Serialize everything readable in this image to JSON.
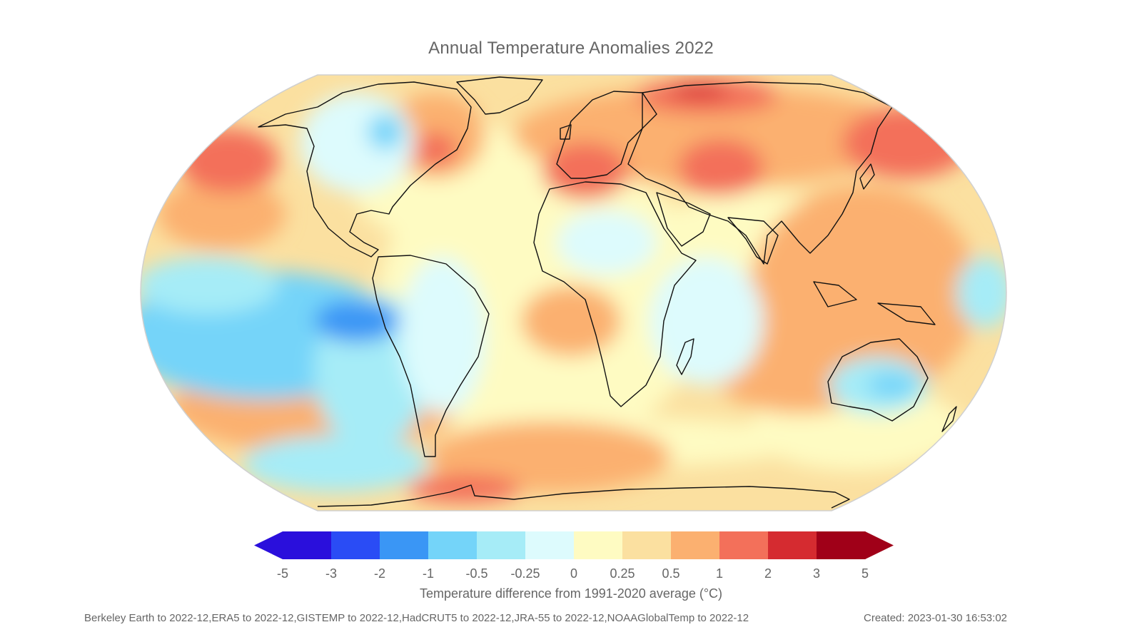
{
  "title": "Annual Temperature Anomalies 2022",
  "colorbar": {
    "label": "Temperature difference from 1991-2020 average (°C)",
    "ticks": [
      "-5",
      "-3",
      "-2",
      "-1",
      "-0.5",
      "-0.25",
      "0",
      "0.25",
      "0.5",
      "1",
      "2",
      "3",
      "5"
    ],
    "bin_colors": [
      "#2a0fdc",
      "#2a4cf5",
      "#3a96f5",
      "#74d4f9",
      "#a6ecf7",
      "#ddfbfd",
      "#fefbc2",
      "#fbe0a0",
      "#fbb070",
      "#f3705a",
      "#d52b30",
      "#a00018"
    ]
  },
  "footer": {
    "sources": "Berkeley Earth to 2022-12,ERA5 to 2022-12,GISTEMP to 2022-12,HadCRUT5 to 2022-12,JRA-55 to 2022-12,NOAAGlobalTemp to 2022-12",
    "created": "Created: 2023-01-30 16:53:02"
  }
}
